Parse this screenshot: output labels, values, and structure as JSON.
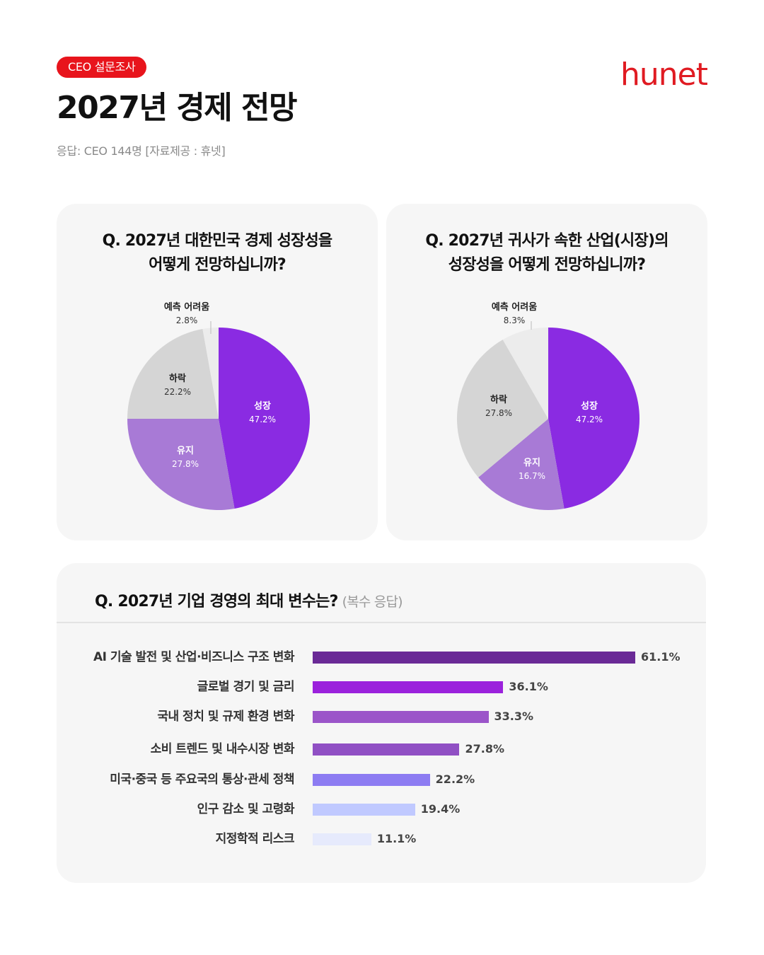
{
  "header": {
    "badge": "CEO 설문조사",
    "title": "2027년 경제 전망",
    "subtitle": "응답: CEO 144명 [자료제공 : 휴넷]",
    "logo_text": "hunet",
    "brand_color": "#e01b22"
  },
  "chart_data": [
    {
      "type": "pie",
      "title_lines": [
        "Q. 2027년 대한민국 경제 성장성을",
        "어떻게 전망하십니까?"
      ],
      "slices": [
        {
          "label": "성장",
          "value": 47.2,
          "display": "47.2%",
          "color": "#8a2be2"
        },
        {
          "label": "유지",
          "value": 27.8,
          "display": "27.8%",
          "color": "#a87ad6"
        },
        {
          "label": "하락",
          "value": 22.2,
          "display": "22.2%",
          "color": "#d5d5d5"
        },
        {
          "label": "예측 어려움",
          "value": 2.8,
          "display": "2.8%",
          "color": "#ececec"
        }
      ]
    },
    {
      "type": "pie",
      "title_lines": [
        "Q. 2027년 귀사가 속한 산업(시장)의",
        "성장성을 어떻게 전망하십니까?"
      ],
      "slices": [
        {
          "label": "성장",
          "value": 47.2,
          "display": "47.2%",
          "color": "#8a2be2"
        },
        {
          "label": "유지",
          "value": 16.7,
          "display": "16.7%",
          "color": "#a87ad6"
        },
        {
          "label": "하락",
          "value": 27.8,
          "display": "27.8%",
          "color": "#d5d5d5"
        },
        {
          "label": "예측 어려움",
          "value": 8.3,
          "display": "8.3%",
          "color": "#ececec"
        }
      ]
    },
    {
      "type": "bar",
      "title": "Q. 2027년 기업 경영의 최대 변수는?",
      "title_note": "(복수 응답)",
      "categories": [
        "AI 기술 발전 및 산업·비즈니스 구조 변화",
        "글로벌 경기 및 금리",
        "국내 정치 및 규제 환경 변화",
        "소비 트렌드 및 내수시장 변화",
        "미국·중국 등 주요국의 통상·관세 정책",
        "인구 감소 및 고령화",
        "지정학적 리스크"
      ],
      "values": [
        61.1,
        36.1,
        33.3,
        27.8,
        22.2,
        19.4,
        11.1
      ],
      "value_labels": [
        "61.1%",
        "36.1%",
        "33.3%",
        "27.8%",
        "22.2%",
        "19.4%",
        "11.1%"
      ],
      "colors": [
        "#6a2a96",
        "#9b22dc",
        "#9b55c9",
        "#9050c4",
        "#8d7cf2",
        "#c0c9ff",
        "#e6eafc"
      ]
    }
  ]
}
